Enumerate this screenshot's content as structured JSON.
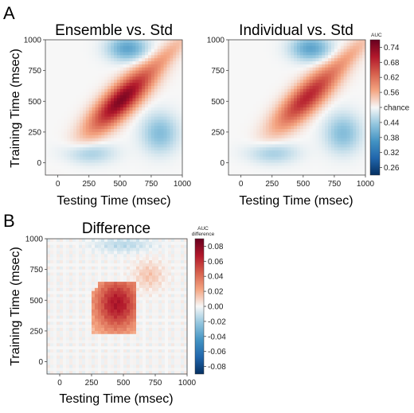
{
  "panel_labels": {
    "a": "A",
    "b": "B"
  },
  "colorbar_top": {
    "title": "AUC",
    "ticks": [
      "0.74",
      "0.68",
      "0.62",
      "0.56",
      "chance",
      "0.44",
      "0.38",
      "0.32",
      "0.26"
    ]
  },
  "colorbar_bottom": {
    "title_line1": "AUC",
    "title_line2": "difference",
    "ticks": [
      "0.08",
      "0.06",
      "0.04",
      "0.02",
      "0.00",
      "-0.02",
      "-0.04",
      "-0.06",
      "-0.08"
    ]
  },
  "colors": {
    "peak_red": "#67001f",
    "red": "#b2182b",
    "light_red": "#f4a582",
    "white": "#f7f7f7",
    "light_blue": "#92c5de",
    "blue": "#2166ac",
    "deep_blue": "#053061"
  },
  "chart_data": [
    {
      "type": "heatmap",
      "title": "Ensemble vs. Std",
      "xlabel": "Testing Time (msec)",
      "ylabel": "Training Time (msec)",
      "xlim": [
        -100,
        1000
      ],
      "ylim": [
        -100,
        1000
      ],
      "xticks": [
        "0",
        "250",
        "500",
        "750",
        "1000"
      ],
      "yticks": [
        "0",
        "250",
        "500",
        "750",
        "1000"
      ],
      "colorbar": "AUC",
      "clim": [
        0.26,
        0.74
      ],
      "chance": 0.5,
      "features": {
        "peak_auc": 0.72,
        "peak_time_ms": [
          500,
          520
        ],
        "diagonal_ridge": "above chance from ~150 to 1000 ms, strongest 350-650 ms",
        "below_chance_regions": "off-diagonal blue lobes near train 850-1000 / test 400-700 and train 100-300 / test 500-900"
      }
    },
    {
      "type": "heatmap",
      "title": "Individual vs. Std",
      "xlabel": "Testing Time (msec)",
      "ylabel": "",
      "xlim": [
        -100,
        1000
      ],
      "ylim": [
        -100,
        1000
      ],
      "xticks": [
        "0",
        "250",
        "500",
        "750",
        "1000"
      ],
      "yticks": [
        "0",
        "250",
        "500",
        "750",
        "1000"
      ],
      "colorbar": "AUC",
      "clim": [
        0.26,
        0.74
      ],
      "chance": 0.5,
      "features": {
        "peak_auc": 0.67,
        "peak_time_ms": [
          520,
          540
        ],
        "diagonal_ridge": "above chance from ~250 to 1000 ms, weaker than Ensemble",
        "below_chance_regions": "off-diagonal blue lobes near train 850-1000 / test 350-650 and train 150-350 / test 600-900"
      }
    },
    {
      "type": "heatmap",
      "title": "Difference",
      "xlabel": "Testing Time (msec)",
      "ylabel": "Training Time (msec)",
      "xlim": [
        -100,
        1000
      ],
      "ylim": [
        -100,
        1000
      ],
      "xticks": [
        "0",
        "250",
        "500",
        "750",
        "1000"
      ],
      "yticks": [
        "0",
        "250",
        "500",
        "750",
        "1000"
      ],
      "colorbar": "AUC difference",
      "clim": [
        -0.08,
        0.08
      ],
      "features": {
        "significant_cluster": "positive cluster spanning train ~220-650 ms and test ~230-600 ms",
        "peak_difference": 0.06
      }
    }
  ]
}
